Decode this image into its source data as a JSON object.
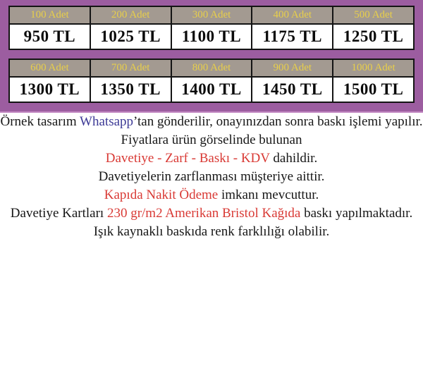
{
  "banner": {
    "tables": [
      {
        "cells": [
          {
            "qty": "100 Adet",
            "price": "950 TL"
          },
          {
            "qty": "200 Adet",
            "price": "1025 TL"
          },
          {
            "qty": "300 Adet",
            "price": "1100 TL"
          },
          {
            "qty": "400 Adet",
            "price": "1175 TL"
          },
          {
            "qty": "500 Adet",
            "price": "1250 TL"
          }
        ]
      },
      {
        "cells": [
          {
            "qty": "600 Adet",
            "price": "1300 TL"
          },
          {
            "qty": "700 Adet",
            "price": "1350 TL"
          },
          {
            "qty": "800 Adet",
            "price": "1400 TL"
          },
          {
            "qty": "900 Adet",
            "price": "1450 TL"
          },
          {
            "qty": "1000 Adet",
            "price": "1500 TL"
          }
        ]
      }
    ]
  },
  "notes": {
    "p1": {
      "pre": "Örnek tasarım ",
      "brand": "Whatsapp",
      "post": "’tan gönderilir, onayınızdan sonra baskı işlemi yapılır."
    },
    "p2": {
      "line1": "Fiyatlara ürün görselinde bulunan",
      "red": "Davetiye - Zarf - Baskı - KDV",
      "post": " dahildir."
    },
    "p3": "Davetiyelerin zarflanması müşteriye aittir.",
    "p4": {
      "red": "Kapıda Nakit Ödeme",
      "post": " imkanı mevcuttur."
    },
    "p5": {
      "pre": "Davetiye Kartları ",
      "red": "230 gr/m2 Amerikan Bristol Kağıda",
      "post": " baskı yapılmaktadır.",
      "line2": "Işık kaynaklı baskıda renk farklılığı olabilir."
    }
  },
  "colors": {
    "banner_purple": "#9c5da0",
    "header_cell_bg": "#a39a91",
    "header_cell_text_gold": "#e8cf4a",
    "price_text": "#0a0a0a",
    "highlight_red": "#d93a35",
    "brand_blue": "#3d3a96"
  }
}
